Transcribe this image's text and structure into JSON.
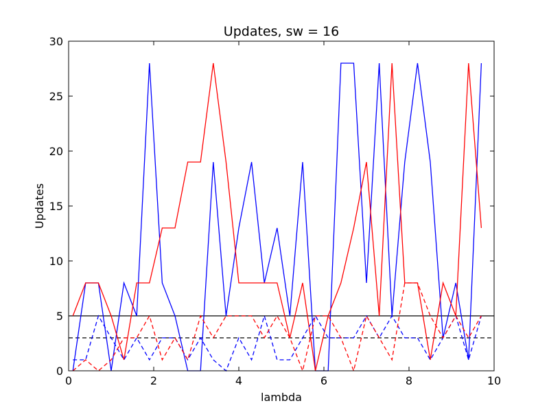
{
  "chart_data": {
    "type": "line",
    "title": "Updates, sw = 16",
    "xlabel": "lambda",
    "ylabel": "Updates",
    "xlim": [
      0,
      10
    ],
    "ylim": [
      0,
      30
    ],
    "xticks": [
      "0",
      "2",
      "4",
      "6",
      "8",
      "10"
    ],
    "yticks": [
      "0",
      "5",
      "10",
      "15",
      "20",
      "25",
      "30"
    ],
    "grid": false,
    "legend": "none",
    "x": [
      0.1,
      0.4,
      0.7,
      1.0,
      1.3,
      1.6,
      1.9,
      2.2,
      2.5,
      2.8,
      3.1,
      3.4,
      3.7,
      4.0,
      4.3,
      4.6,
      4.9,
      5.2,
      5.5,
      5.8,
      6.1,
      6.4,
      6.7,
      7.0,
      7.3,
      7.6,
      7.9,
      8.2,
      8.5,
      8.8,
      9.1,
      9.4,
      9.7
    ],
    "series": [
      {
        "color": "#0000ff",
        "style": "solid",
        "values": [
          0,
          8,
          8,
          0,
          8,
          5,
          28,
          8,
          5,
          0,
          0,
          19,
          5,
          13,
          19,
          8,
          13,
          5,
          19,
          0,
          0,
          28,
          28,
          8,
          28,
          5,
          19,
          28,
          19,
          3,
          8,
          1,
          28
        ]
      },
      {
        "color": "#ff0000",
        "style": "solid",
        "values": [
          5,
          8,
          8,
          5,
          1,
          8,
          8,
          13,
          13,
          19,
          19,
          28,
          19,
          8,
          8,
          8,
          8,
          3,
          8,
          0,
          5,
          8,
          13,
          19,
          5,
          28,
          8,
          8,
          1,
          8,
          5,
          28,
          13
        ]
      },
      {
        "color": "#0000ff",
        "style": "dashed",
        "values": [
          1,
          1,
          5,
          3,
          1,
          3,
          1,
          3,
          3,
          1,
          3,
          1,
          0,
          3,
          1,
          5,
          1,
          1,
          3,
          5,
          3,
          3,
          3,
          5,
          3,
          5,
          3,
          3,
          1,
          3,
          5,
          1,
          5
        ]
      },
      {
        "color": "#ff0000",
        "style": "dashed",
        "values": [
          0,
          1,
          0,
          1,
          3,
          3,
          5,
          1,
          3,
          1,
          5,
          3,
          5,
          5,
          5,
          3,
          5,
          3,
          0,
          5,
          5,
          3,
          0,
          5,
          3,
          1,
          8,
          8,
          5,
          3,
          5,
          3,
          5
        ]
      }
    ],
    "hlines": [
      {
        "y": 5,
        "color": "#000000",
        "style": "solid"
      },
      {
        "y": 3,
        "color": "#000000",
        "style": "dashed"
      }
    ]
  }
}
